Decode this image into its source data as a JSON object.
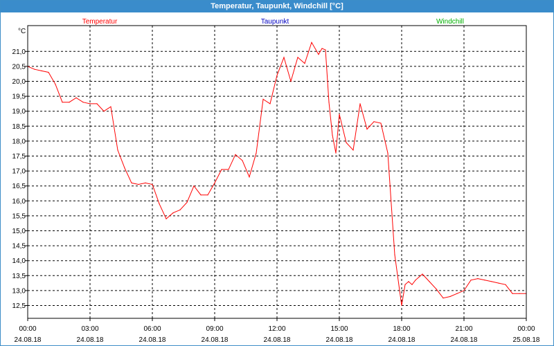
{
  "window": {
    "title": "Temperatur, Taupunkt, Windchill [°C]"
  },
  "chart_data": {
    "type": "line",
    "title": "Temperatur, Taupunkt, Windchill [°C]",
    "ylabel": "°C",
    "xlabel": "",
    "legend": [
      {
        "name": "Temperatur",
        "color": "#ff0000",
        "position": "left"
      },
      {
        "name": "Taupunkt",
        "color": "#0000c0",
        "position": "center"
      },
      {
        "name": "Windchill",
        "color": "#00b000",
        "position": "right"
      }
    ],
    "ylim": [
      12.2,
      22.0
    ],
    "yticks": [
      "12,5",
      "13,0",
      "13,5",
      "14,0",
      "14,5",
      "15,0",
      "15,5",
      "16,0",
      "16,5",
      "17,0",
      "17,5",
      "18,0",
      "18,5",
      "19,0",
      "19,5",
      "20,0",
      "20,5",
      "21,0"
    ],
    "xticks": [
      {
        "time": "00:00",
        "date": "24.08.18"
      },
      {
        "time": "03:00",
        "date": "24.08.18"
      },
      {
        "time": "06:00",
        "date": "24.08.18"
      },
      {
        "time": "09:00",
        "date": "24.08.18"
      },
      {
        "time": "12:00",
        "date": "24.08.18"
      },
      {
        "time": "15:00",
        "date": "24.08.18"
      },
      {
        "time": "18:00",
        "date": "24.08.18"
      },
      {
        "time": "21:00",
        "date": "24.08.18"
      },
      {
        "time": "00:00",
        "date": "25.08.18"
      }
    ],
    "grid": true,
    "series": [
      {
        "name": "Temperatur",
        "color": "#ff0000",
        "x": [
          "00:00",
          "00:20",
          "00:40",
          "01:00",
          "01:20",
          "01:40",
          "02:00",
          "02:20",
          "02:40",
          "03:00",
          "03:20",
          "03:40",
          "04:00",
          "04:20",
          "04:40",
          "05:00",
          "05:20",
          "05:40",
          "06:00",
          "06:20",
          "06:40",
          "07:00",
          "07:20",
          "07:40",
          "08:00",
          "08:20",
          "08:40",
          "09:00",
          "09:20",
          "09:40",
          "10:00",
          "10:20",
          "10:40",
          "11:00",
          "11:20",
          "11:40",
          "12:00",
          "12:20",
          "12:40",
          "13:00",
          "13:20",
          "13:40",
          "14:00",
          "14:10",
          "14:20",
          "14:30",
          "14:40",
          "14:50",
          "15:00",
          "15:20",
          "15:40",
          "16:00",
          "16:20",
          "16:40",
          "17:00",
          "17:20",
          "17:40",
          "18:00",
          "18:10",
          "18:20",
          "18:30",
          "18:40",
          "19:00",
          "19:20",
          "19:40",
          "20:00",
          "20:20",
          "20:40",
          "21:00",
          "21:20",
          "21:40",
          "22:00",
          "22:20",
          "22:40",
          "23:00",
          "23:20",
          "23:40",
          "00:00"
        ],
        "values": [
          20.5,
          20.4,
          20.35,
          20.3,
          19.9,
          19.3,
          19.3,
          19.45,
          19.3,
          19.25,
          19.25,
          19.0,
          19.15,
          17.7,
          17.1,
          16.6,
          16.55,
          16.6,
          16.55,
          15.9,
          15.4,
          15.6,
          15.7,
          15.95,
          16.5,
          16.2,
          16.2,
          16.6,
          17.05,
          17.05,
          17.55,
          17.35,
          16.8,
          17.6,
          19.4,
          19.25,
          20.2,
          20.8,
          20.0,
          20.8,
          20.6,
          21.3,
          20.9,
          21.1,
          21.05,
          19.3,
          18.2,
          17.6,
          18.9,
          17.95,
          17.7,
          19.25,
          18.4,
          18.65,
          18.6,
          17.6,
          14.2,
          12.5,
          13.2,
          13.3,
          13.2,
          13.35,
          13.55,
          13.3,
          13.05,
          12.75,
          12.8,
          12.9,
          13.0,
          13.35,
          13.4,
          13.35,
          13.3,
          13.25,
          13.2,
          12.9,
          12.9,
          12.9
        ]
      }
    ]
  }
}
